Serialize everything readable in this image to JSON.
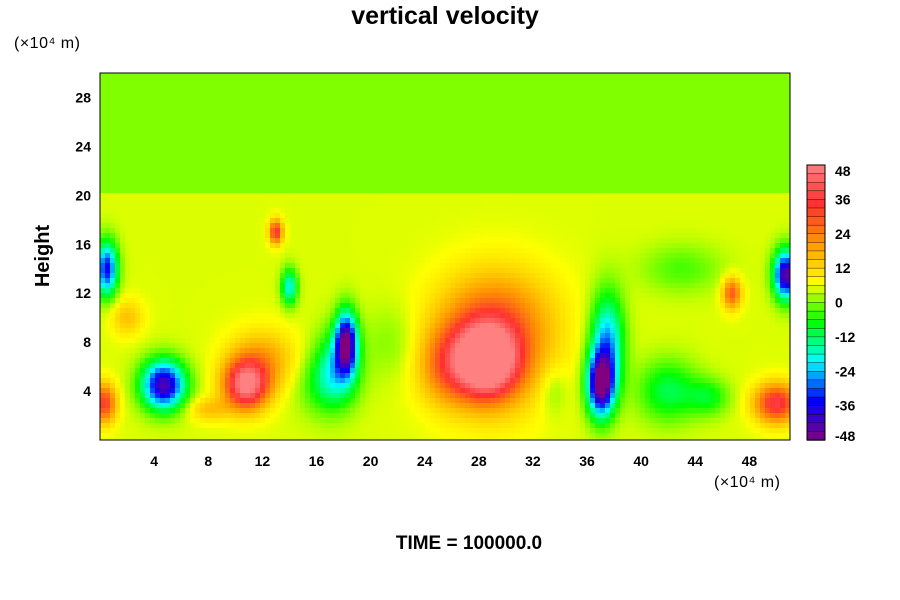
{
  "chart_data": {
    "type": "heatmap",
    "title": "vertical velocity",
    "ylabel": "Height",
    "x_unit_label": "(×10⁴ m)",
    "y_unit_label": "(×10⁴ m)",
    "footer": "TIME = 100000.0",
    "xlim": [
      0,
      51
    ],
    "ylim": [
      0,
      30
    ],
    "x_ticks": [
      4,
      8,
      12,
      16,
      20,
      24,
      28,
      32,
      36,
      40,
      44,
      48
    ],
    "y_ticks": [
      4,
      8,
      12,
      16,
      20,
      24,
      28
    ],
    "colorbar": {
      "min": -48,
      "max": 48,
      "ticks": [
        48,
        36,
        24,
        12,
        0,
        -12,
        -24,
        -36,
        -48
      ],
      "colors": [
        "#ff8080",
        "#ff3030",
        "#ff9900",
        "#ffff00",
        "#00ff00",
        "#00ffff",
        "#0000ff",
        "#800080"
      ]
    },
    "features": [
      {
        "x": 28.5,
        "y": 6.5,
        "value": 48,
        "sx": 2.2,
        "sy": 2.8
      },
      {
        "x": 29.0,
        "y": 7.5,
        "value": 22,
        "sx": 4.0,
        "sy": 5.0
      },
      {
        "x": 29.5,
        "y": 10.5,
        "value": 8,
        "sx": 4.5,
        "sy": 4.0
      },
      {
        "x": 25.5,
        "y": 6.0,
        "value": 14,
        "sx": 2.0,
        "sy": 3.0
      },
      {
        "x": 37.0,
        "y": 4.5,
        "value": -50,
        "sx": 1.0,
        "sy": 2.6
      },
      {
        "x": 37.5,
        "y": 8.0,
        "value": -30,
        "sx": 1.2,
        "sy": 4.0
      },
      {
        "x": 4.7,
        "y": 4.5,
        "value": -48,
        "sx": 1.6,
        "sy": 2.0
      },
      {
        "x": 10.8,
        "y": 4.5,
        "value": 42,
        "sx": 1.6,
        "sy": 2.0
      },
      {
        "x": 12.0,
        "y": 6.5,
        "value": 14,
        "sx": 2.5,
        "sy": 2.5
      },
      {
        "x": 18.2,
        "y": 8.0,
        "value": -48,
        "sx": 0.8,
        "sy": 2.5
      },
      {
        "x": 17.5,
        "y": 6.0,
        "value": -20,
        "sx": 1.6,
        "sy": 3.0
      },
      {
        "x": 16.5,
        "y": 4.5,
        "value": -10,
        "sx": 2.0,
        "sy": 2.5
      },
      {
        "x": 13.0,
        "y": 17.0,
        "value": 30,
        "sx": 0.5,
        "sy": 1.0
      },
      {
        "x": 14.0,
        "y": 12.5,
        "value": -25,
        "sx": 0.6,
        "sy": 1.5
      },
      {
        "x": 0.3,
        "y": 3.0,
        "value": 28,
        "sx": 0.9,
        "sy": 1.6
      },
      {
        "x": 0.5,
        "y": 14.0,
        "value": -40,
        "sx": 0.8,
        "sy": 2.2
      },
      {
        "x": 50.7,
        "y": 13.5,
        "value": -50,
        "sx": 0.9,
        "sy": 2.0
      },
      {
        "x": 50.0,
        "y": 3.0,
        "value": 32,
        "sx": 1.6,
        "sy": 1.6
      },
      {
        "x": 46.7,
        "y": 12.0,
        "value": 24,
        "sx": 0.7,
        "sy": 1.3
      },
      {
        "x": 42.0,
        "y": 4.0,
        "value": -16,
        "sx": 2.2,
        "sy": 2.5
      },
      {
        "x": 45.0,
        "y": 3.5,
        "value": -12,
        "sx": 1.5,
        "sy": 1.5
      },
      {
        "x": 8.0,
        "y": 2.5,
        "value": 10,
        "sx": 1.5,
        "sy": 1.0
      },
      {
        "x": 2.0,
        "y": 10.0,
        "value": 10,
        "sx": 1.2,
        "sy": 1.5
      },
      {
        "x": 21.5,
        "y": 8.0,
        "value": -5,
        "sx": 2.0,
        "sy": 3.0
      },
      {
        "x": 33.5,
        "y": 4.0,
        "value": -6,
        "sx": 1.0,
        "sy": 2.0
      },
      {
        "x": 43.0,
        "y": 14.0,
        "value": -8,
        "sx": 3.0,
        "sy": 2.0
      }
    ]
  }
}
